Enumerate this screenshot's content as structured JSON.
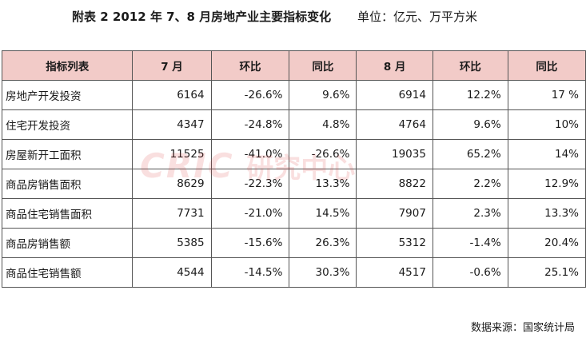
{
  "title": {
    "main": "附表 2   2012 年 7、8 月房地产业主要指标变化",
    "unit": "单位：亿元、万平方米"
  },
  "table": {
    "headers": [
      "指标列表",
      "7 月",
      "环比",
      "同比",
      "8 月",
      "环比",
      "同比"
    ],
    "rows": [
      [
        "房地产开发投资",
        "6164",
        "-26.6%",
        "9.6%",
        "6914",
        "12.2%",
        "17 %"
      ],
      [
        "住宅开发投资",
        "4347",
        "-24.8%",
        "4.8%",
        "4764",
        "9.6%",
        "10%"
      ],
      [
        "房屋新开工面积",
        "11525",
        "-41.0%",
        "-26.6%",
        "19035",
        "65.2%",
        "14%"
      ],
      [
        "商品房销售面积",
        "8629",
        "-22.3%",
        "13.3%",
        "8822",
        "2.2%",
        "12.9%"
      ],
      [
        "商品住宅销售面积",
        "7731",
        "-21.0%",
        "14.5%",
        "7907",
        "2.3%",
        "13.3%"
      ],
      [
        "商品房销售额",
        "5385",
        "-15.6%",
        "26.3%",
        "5312",
        "-1.4%",
        "20.4%"
      ],
      [
        "商品住宅销售额",
        "4544",
        "-14.5%",
        "30.3%",
        "4517",
        "-0.6%",
        "25.1%"
      ]
    ]
  },
  "watermark": {
    "latin": "CRIC",
    "chinese": "研究中心"
  },
  "source": "数据来源：国家统计局",
  "colors": {
    "header_bg": "#f2cbc8",
    "border": "#555555",
    "watermark": "#d73737"
  }
}
